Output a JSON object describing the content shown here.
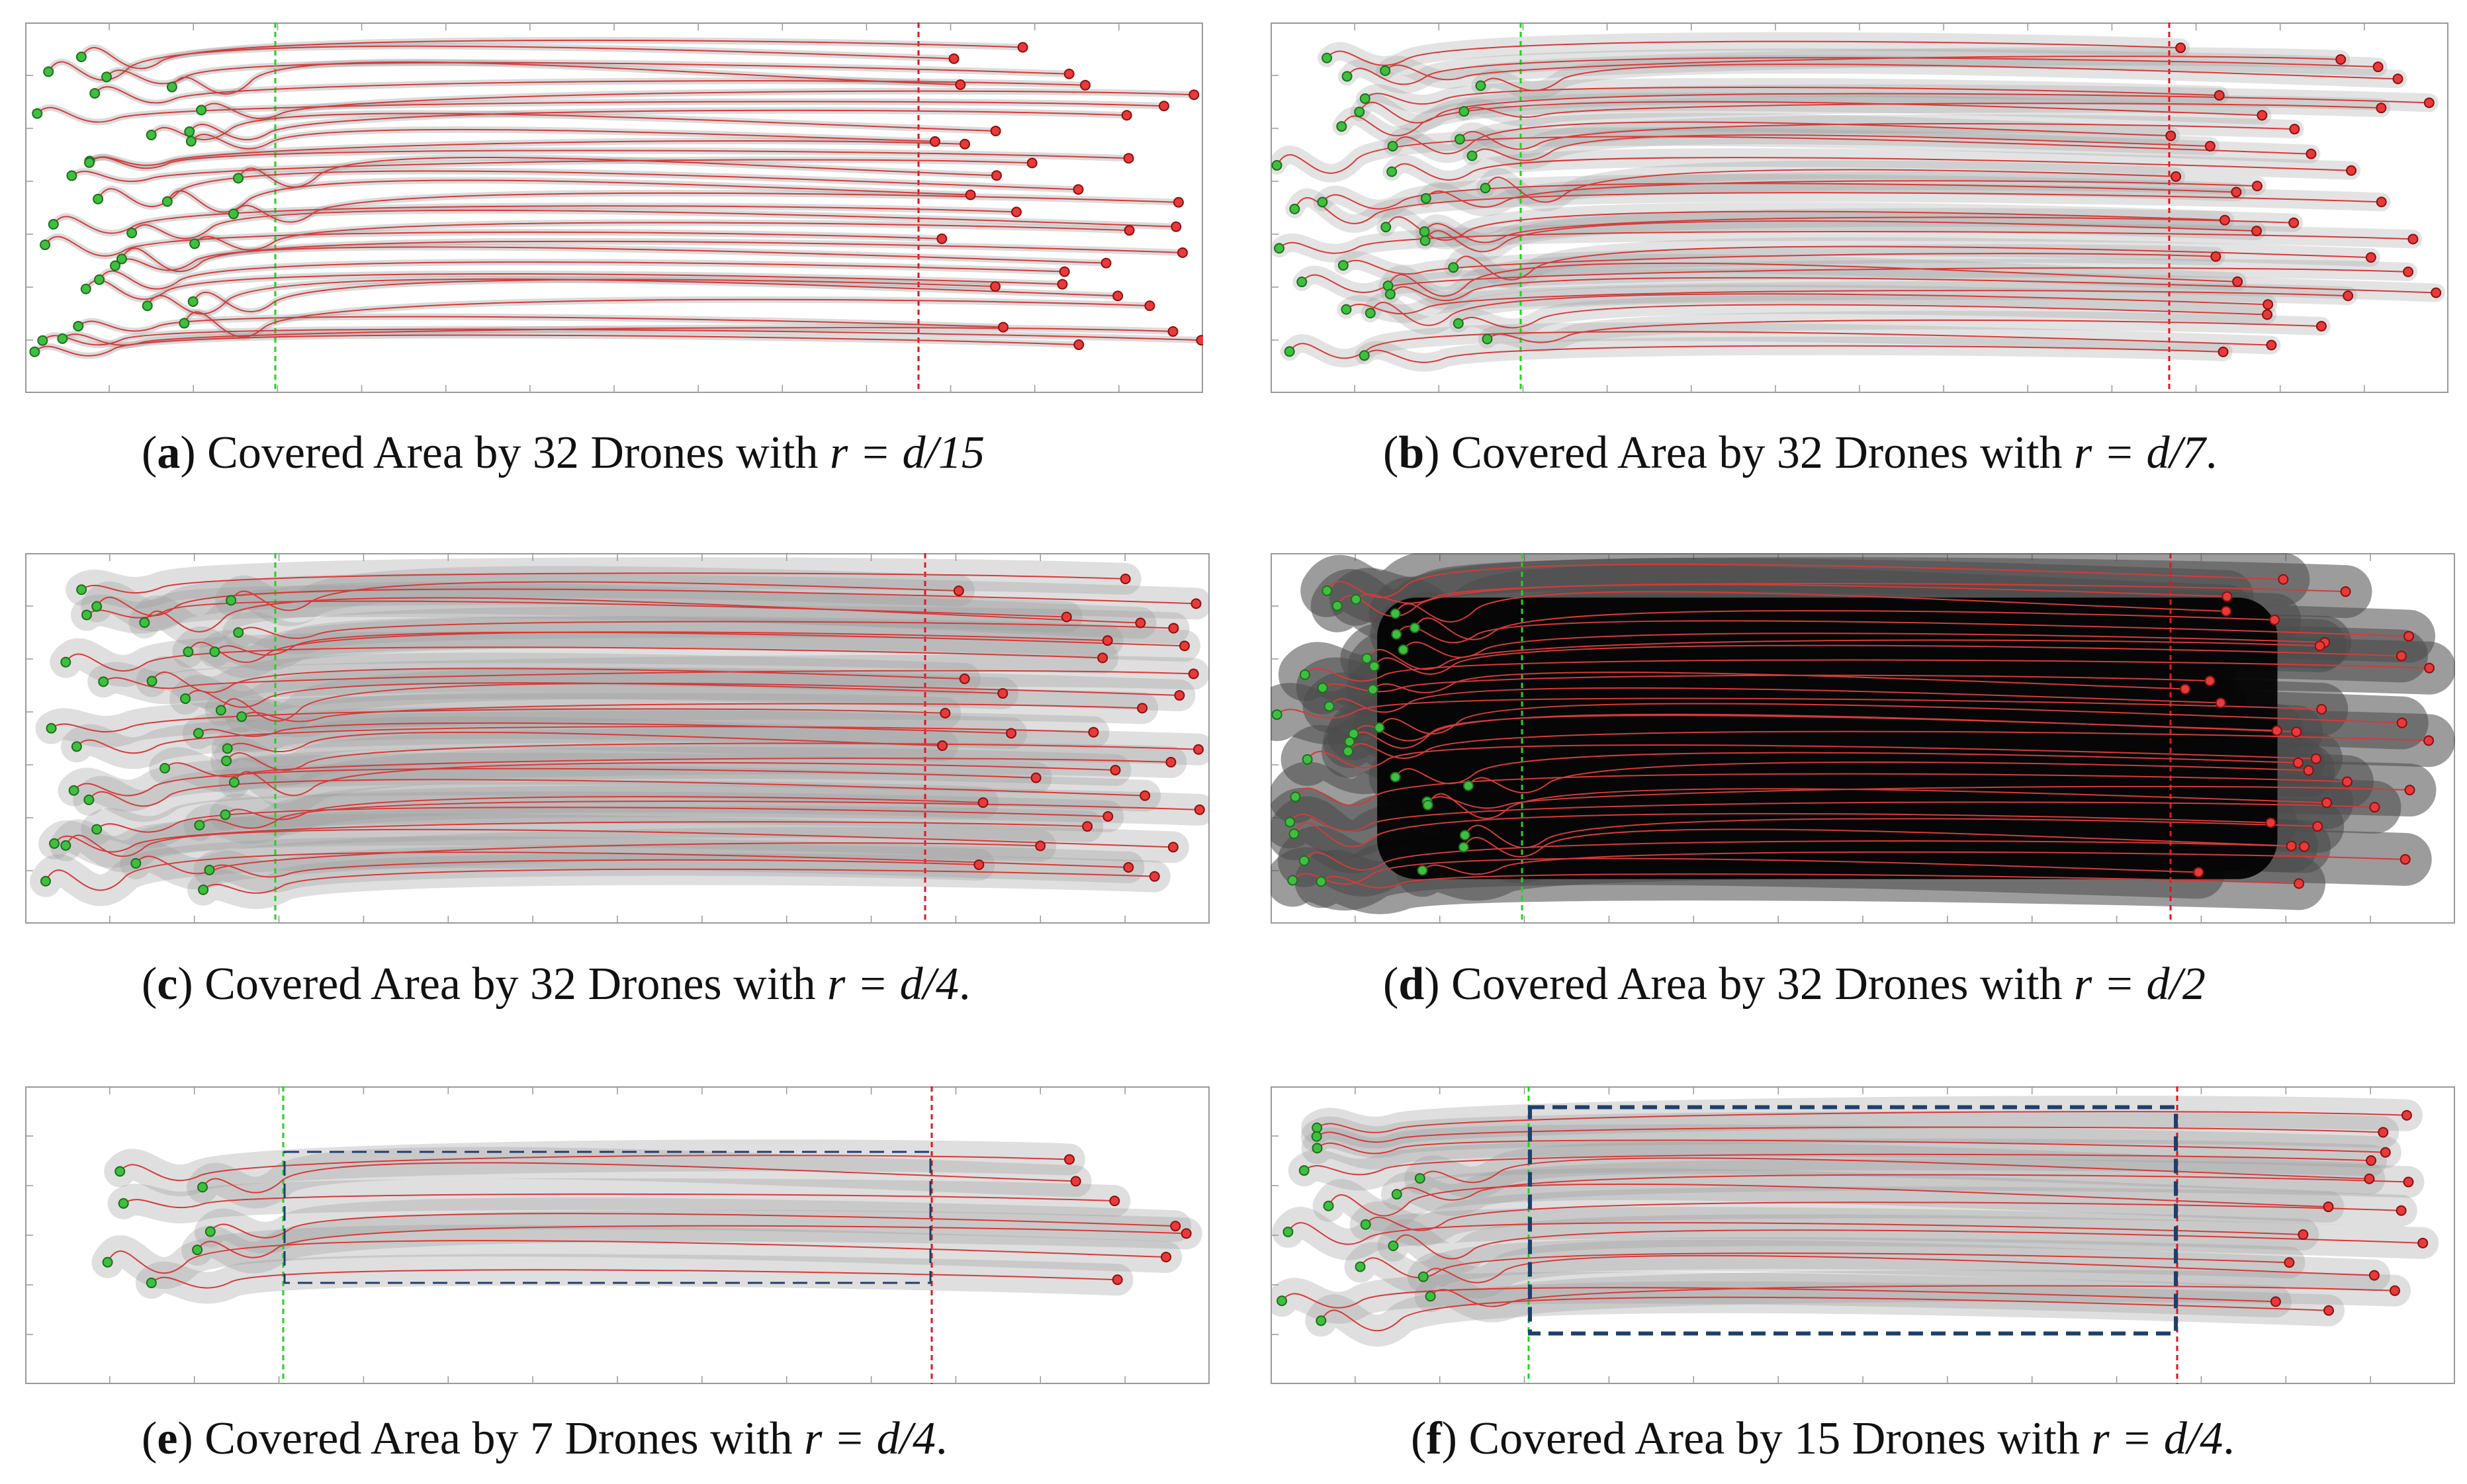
{
  "figure": {
    "panels": [
      {
        "id": "a",
        "letter": "a",
        "caption": "Covered Area by 32 Drones with",
        "radius_label": "r = d/15",
        "trailing": "",
        "drones": 32,
        "coverage_level": 0.12,
        "dashed_box": false
      },
      {
        "id": "b",
        "letter": "b",
        "caption": "Covered Area by 32 Drones with",
        "radius_label": "r = d/7",
        "trailing": ".",
        "drones": 32,
        "coverage_level": 0.35,
        "dashed_box": false
      },
      {
        "id": "c",
        "letter": "c",
        "caption": "Covered Area by 32 Drones with",
        "radius_label": "r = d/4",
        "trailing": ".",
        "drones": 32,
        "coverage_level": 0.6,
        "dashed_box": false
      },
      {
        "id": "d",
        "letter": "d",
        "caption": "Covered Area by 32 Drones with",
        "radius_label": "r = d/2",
        "trailing": "",
        "drones": 32,
        "coverage_level": 1.0,
        "dashed_box": false
      },
      {
        "id": "e",
        "letter": "e",
        "caption": "Covered Area by 7 Drones with",
        "radius_label": "r = d/4",
        "trailing": ".",
        "drones": 7,
        "coverage_level": 0.6,
        "dashed_box": true
      },
      {
        "id": "f",
        "letter": "f",
        "caption": "Covered Area by 15 Drones with",
        "radius_label": "r = d/4",
        "trailing": ".",
        "drones": 15,
        "coverage_level": 0.6,
        "dashed_box": true
      }
    ]
  },
  "colors": {
    "start_marker": "#3fbf3f",
    "end_marker": "#e83a3a",
    "trajectory": "#d63a3a",
    "coverage": "#9a9a9a",
    "start_line": "#22d322",
    "end_line": "#e0161e",
    "dashed_box": "#1f3f6b"
  }
}
